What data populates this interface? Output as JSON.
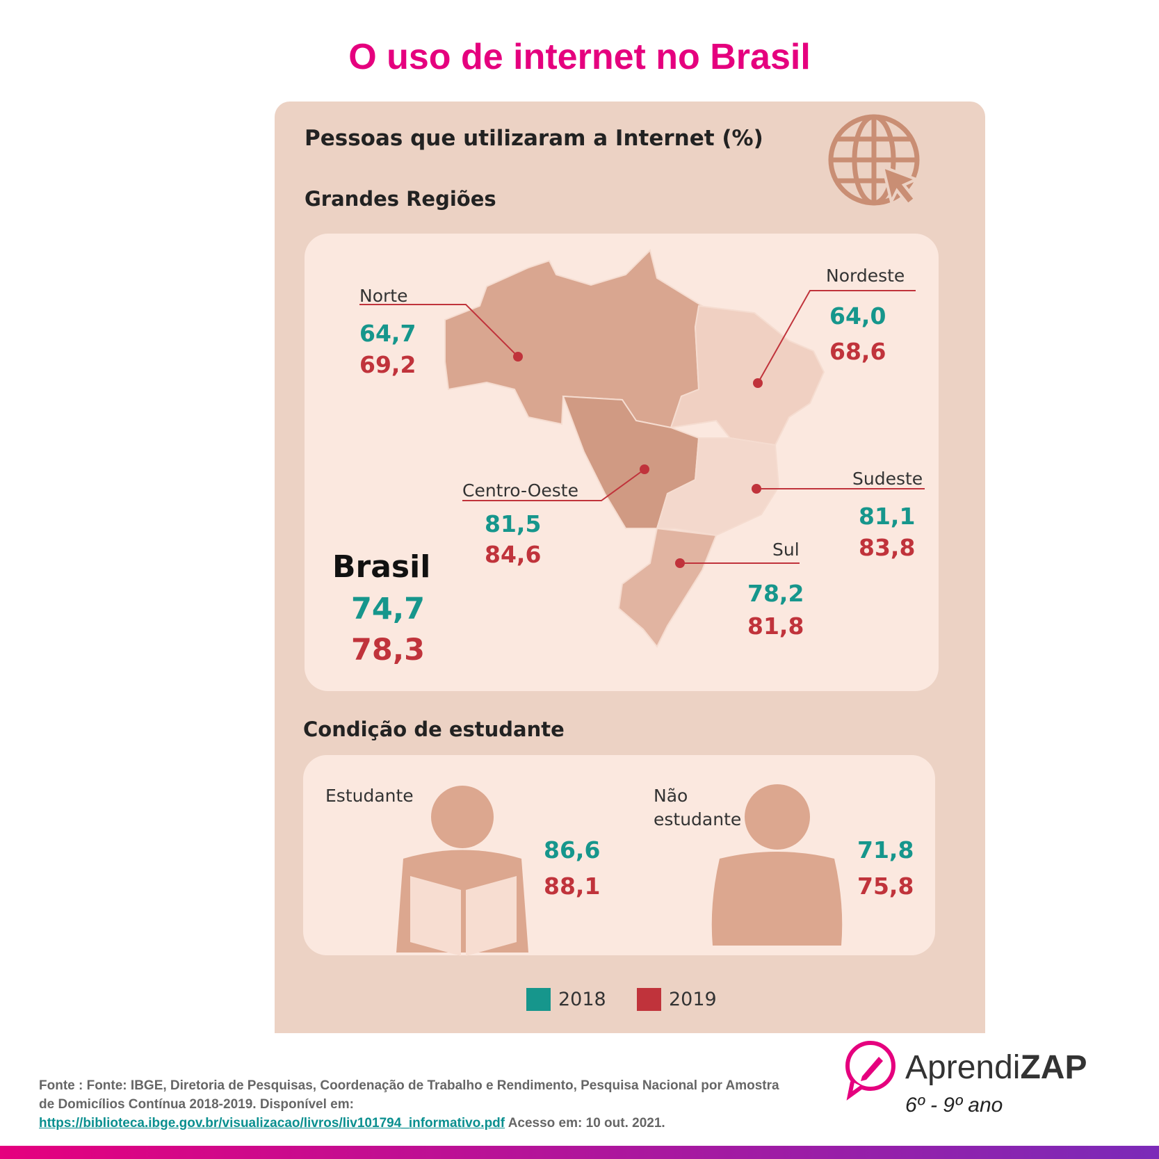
{
  "title": "O uso de internet no Brasil",
  "card": {
    "title": "Pessoas que utilizaram a Internet (%)",
    "regions_heading": "Grandes Regiões",
    "regions": [
      {
        "name": "Norte",
        "v2018": "64,7",
        "v2019": "69,2"
      },
      {
        "name": "Nordeste",
        "v2018": "64,0",
        "v2019": "68,6"
      },
      {
        "name": "Centro-Oeste",
        "v2018": "81,5",
        "v2019": "84,6"
      },
      {
        "name": "Sudeste",
        "v2018": "81,1",
        "v2019": "83,8"
      },
      {
        "name": "Sul",
        "v2018": "78,2",
        "v2019": "81,8"
      }
    ],
    "brasil": {
      "name": "Brasil",
      "v2018": "74,7",
      "v2019": "78,3"
    },
    "students_heading": "Condição de estudante",
    "students": [
      {
        "name": "Estudante",
        "v2018": "86,6",
        "v2019": "88,1"
      },
      {
        "name": "Não estudante",
        "v2018": "71,8",
        "v2019": "75,8"
      }
    ],
    "legend": [
      {
        "label": "2018",
        "color": "#16968c"
      },
      {
        "label": "2019",
        "color": "#c0333b"
      }
    ]
  },
  "source": {
    "prefix": "Fonte : Fonte: IBGE, Diretoria de Pesquisas, Coordenação de Trabalho e Rendimento, Pesquisa Nacional por Amostra de Domicílios Contínua 2018-2019. Disponível em:",
    "link": "https://biblioteca.ibge.gov.br/visualizacao/livros/liv101794_informativo.pdf",
    "suffix": "Acesso em: 10 out. 2021."
  },
  "brand": {
    "name_light": "Aprendi",
    "name_bold": "ZAP",
    "grade": "6º - 9º ano"
  }
}
